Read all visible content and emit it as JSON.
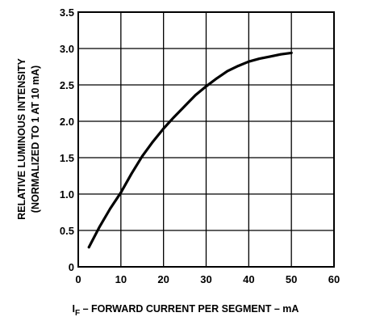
{
  "chart_data": {
    "type": "line",
    "title": "",
    "xlabel": {
      "main": "I",
      "subscript": "F",
      "rest": " – FORWARD CURRENT PER SEGMENT – mA"
    },
    "ylabel_lines": [
      "RELATIVE LUMINOUS INTENSITY",
      "(NORMALIZED TO 1 AT 10 mA)"
    ],
    "xlim": [
      0,
      60
    ],
    "ylim": [
      0,
      3.5
    ],
    "xticks": [
      "0",
      "10",
      "20",
      "30",
      "40",
      "50",
      "60"
    ],
    "yticks": [
      "0",
      "0.5",
      "1.0",
      "1.5",
      "2.0",
      "2.5",
      "3.0",
      "3.5"
    ],
    "grid": true,
    "series": [
      {
        "x": [
          2.5,
          5,
          7.5,
          10,
          12.5,
          15,
          17.5,
          20,
          22.5,
          25,
          27.5,
          30,
          32.5,
          35,
          37.5,
          40,
          42.5,
          45,
          47.5,
          50
        ],
        "y": [
          0.27,
          0.55,
          0.8,
          1.02,
          1.28,
          1.52,
          1.72,
          1.9,
          2.06,
          2.21,
          2.36,
          2.48,
          2.59,
          2.69,
          2.76,
          2.82,
          2.86,
          2.89,
          2.92,
          2.94
        ]
      }
    ]
  }
}
